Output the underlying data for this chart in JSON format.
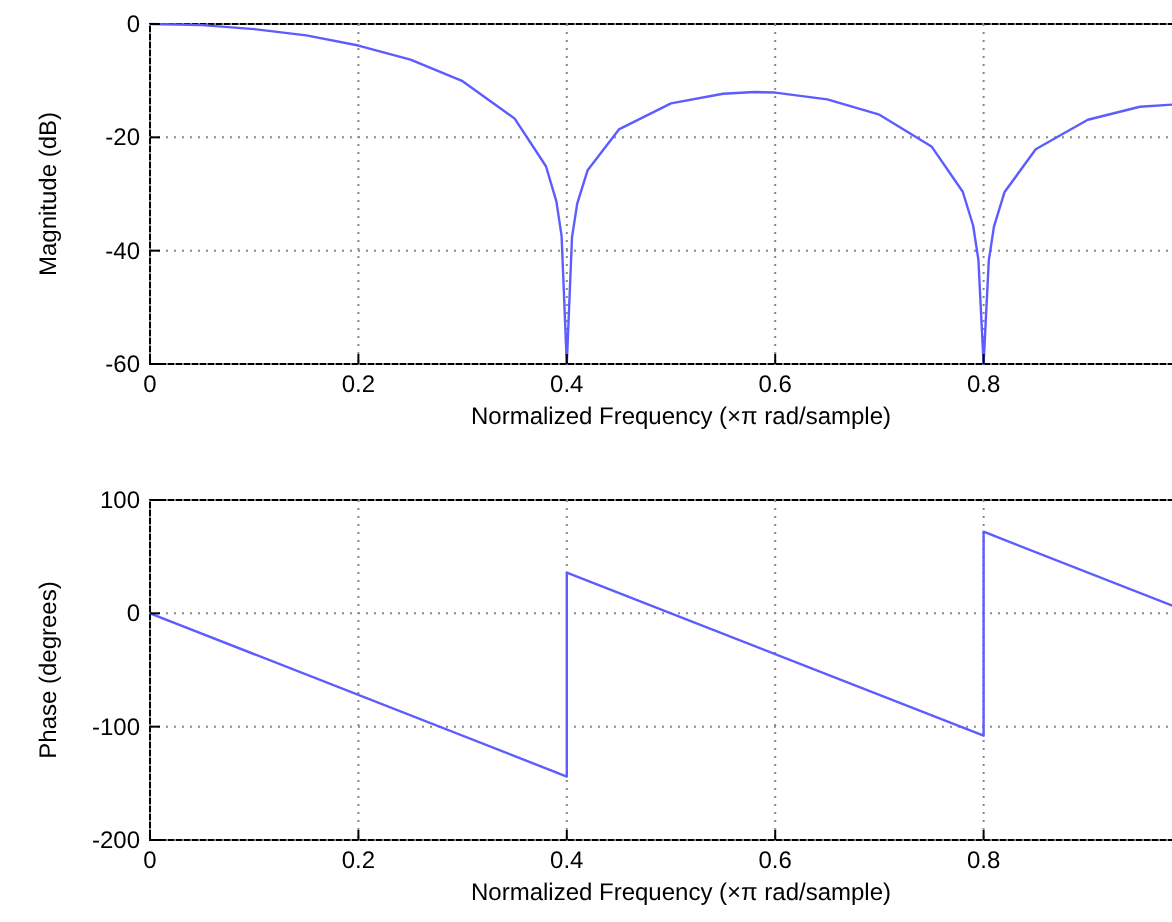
{
  "chart_data": [
    {
      "type": "line",
      "xlabel": "Normalized Frequency  (×π rad/sample)",
      "ylabel": "Magnitude (dB)",
      "color": "#5c5cff",
      "grid": true,
      "xlim": [
        0,
        1
      ],
      "ylim": [
        -60,
        0
      ],
      "xticks": [
        0,
        0.2,
        0.4,
        0.6,
        0.8
      ],
      "yticks": [
        -60,
        -40,
        -20,
        0
      ],
      "x": [
        0,
        0.05,
        0.1,
        0.15,
        0.2,
        0.25,
        0.3,
        0.35,
        0.38,
        0.39,
        0.395,
        0.4,
        0.405,
        0.41,
        0.42,
        0.45,
        0.5,
        0.55,
        0.58,
        0.6,
        0.65,
        0.7,
        0.75,
        0.78,
        0.79,
        0.795,
        0.8,
        0.805,
        0.81,
        0.82,
        0.85,
        0.9,
        0.95,
        1
      ],
      "values": [
        0,
        -0.2,
        -0.9,
        -2,
        -3.8,
        -6.3,
        -10.1,
        -16.7,
        -25.1,
        -31.3,
        -37.4,
        -60,
        -37.6,
        -31.7,
        -25.8,
        -18.6,
        -14,
        -12.3,
        -12,
        -12.1,
        -13.3,
        -16,
        -21.6,
        -29.6,
        -35.6,
        -41.6,
        -60,
        -41.7,
        -35.7,
        -29.7,
        -22.1,
        -16.9,
        -14.6,
        -14
      ]
    },
    {
      "type": "line",
      "xlabel": "Normalized Frequency  (×π rad/sample)",
      "ylabel": "Phase (degrees)",
      "color": "#5c5cff",
      "grid": true,
      "xlim": [
        0,
        1
      ],
      "ylim": [
        -200,
        100
      ],
      "xticks": [
        0,
        0.2,
        0.4,
        0.6,
        0.8
      ],
      "yticks": [
        -200,
        -100,
        0,
        100
      ],
      "x": [
        0,
        0.4,
        0.4,
        0.8,
        0.8,
        1
      ],
      "values": [
        0,
        -144,
        36,
        -108,
        72,
        0
      ]
    }
  ]
}
